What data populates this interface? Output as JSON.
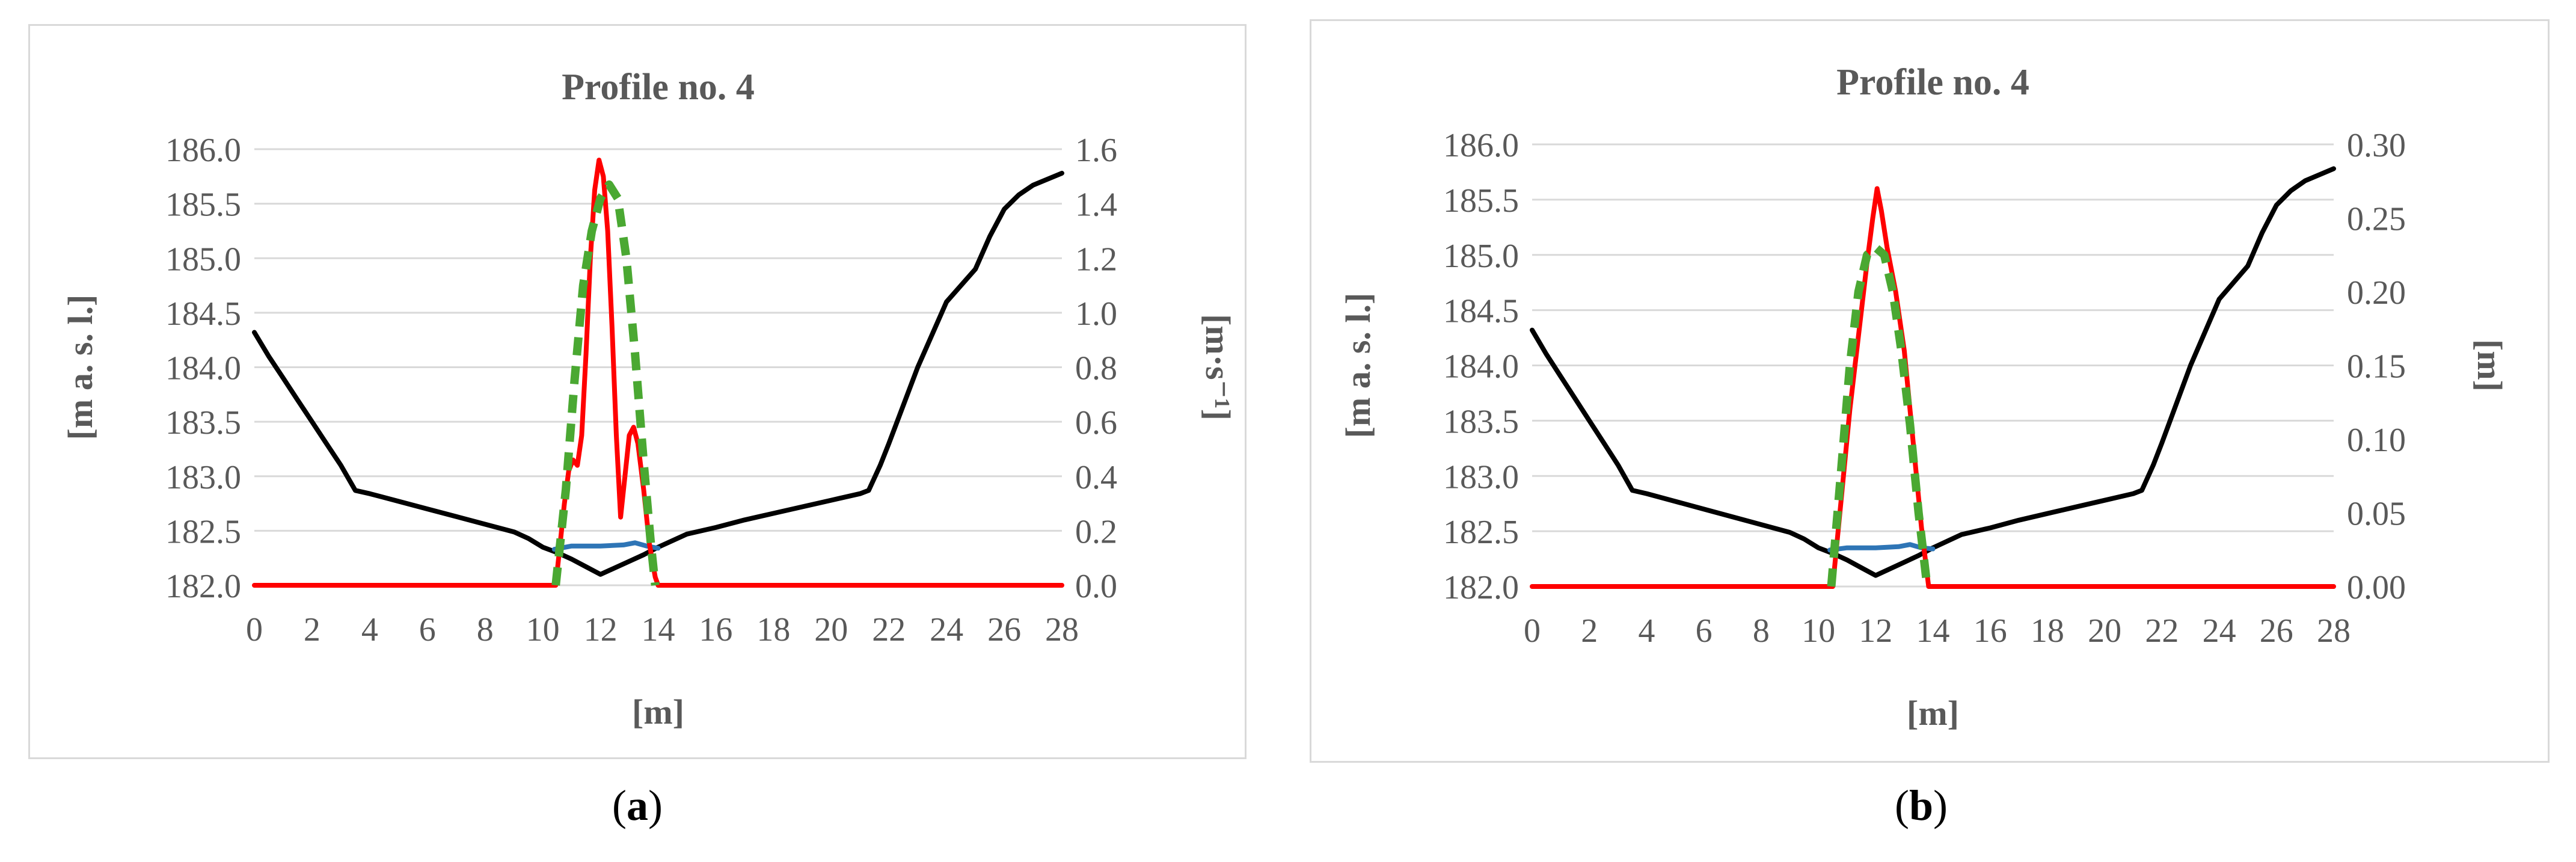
{
  "captions": [
    {
      "open": "(",
      "letter": "a",
      "close": ")"
    },
    {
      "open": "(",
      "letter": "b",
      "close": ")"
    }
  ],
  "colors": {
    "terrain": "#000000",
    "water_level": "#2e75b6",
    "computed": "#ff0000",
    "measured": "#4aa832",
    "grid": "#d9d9d9",
    "axis_text": "#595959"
  },
  "chart_data": [
    {
      "type": "line",
      "title": "Profile no. 4",
      "xlabel": "[m]",
      "ylabel": "[m a. s. l.]",
      "y2label": "[m·s⁻¹]",
      "xlim": [
        0,
        28
      ],
      "xticks": [
        "0",
        "2",
        "4",
        "6",
        "8",
        "10",
        "12",
        "14",
        "16",
        "18",
        "20",
        "22",
        "24",
        "26",
        "28"
      ],
      "ylim": [
        182.0,
        186.0
      ],
      "yticks": [
        "182.0",
        "182.5",
        "183.0",
        "183.5",
        "184.0",
        "184.5",
        "185.0",
        "185.5",
        "186.0"
      ],
      "y2lim": [
        0,
        1.6
      ],
      "y2ticks": [
        "0.0",
        "0.2",
        "0.4",
        "0.6",
        "0.8",
        "1.0",
        "1.2",
        "1.4",
        "1.6"
      ],
      "grid": "horizontal",
      "series": [
        {
          "key": "terrain",
          "axis": "left",
          "style": "solid",
          "points": [
            [
              0,
              184.32
            ],
            [
              0.5,
              184.1
            ],
            [
              1,
              183.9
            ],
            [
              1.5,
              183.7
            ],
            [
              2,
              183.5
            ],
            [
              2.5,
              183.3
            ],
            [
              3,
              183.1
            ],
            [
              3.5,
              182.87
            ],
            [
              4,
              182.84
            ],
            [
              5,
              182.77
            ],
            [
              6,
              182.7
            ],
            [
              7,
              182.63
            ],
            [
              8,
              182.56
            ],
            [
              9,
              182.49
            ],
            [
              9.5,
              182.43
            ],
            [
              10,
              182.35
            ],
            [
              10.5,
              182.3
            ],
            [
              11,
              182.24
            ],
            [
              11.5,
              182.17
            ],
            [
              12,
              182.1
            ],
            [
              12.5,
              182.16
            ],
            [
              13,
              182.22
            ],
            [
              13.5,
              182.28
            ],
            [
              14,
              182.35
            ],
            [
              15,
              182.47
            ],
            [
              16,
              182.53
            ],
            [
              17,
              182.6
            ],
            [
              18,
              182.66
            ],
            [
              19,
              182.72
            ],
            [
              20,
              182.78
            ],
            [
              21,
              182.84
            ],
            [
              21.3,
              182.87
            ],
            [
              21.7,
              183.1
            ],
            [
              22,
              183.3
            ],
            [
              23,
              184.0
            ],
            [
              24,
              184.6
            ],
            [
              25,
              184.9
            ],
            [
              25.5,
              185.2
            ],
            [
              26,
              185.45
            ],
            [
              26.5,
              185.58
            ],
            [
              27,
              185.67
            ],
            [
              28,
              185.78
            ]
          ]
        },
        {
          "key": "water_level",
          "axis": "left",
          "style": "solid",
          "points": [
            [
              10.4,
              182.33
            ],
            [
              11,
              182.36
            ],
            [
              12,
              182.36
            ],
            [
              12.8,
              182.37
            ],
            [
              13.2,
              182.39
            ],
            [
              13.6,
              182.36
            ],
            [
              14,
              182.34
            ]
          ]
        },
        {
          "key": "computed",
          "axis": "right",
          "style": "solid",
          "points": [
            [
              0,
              0
            ],
            [
              10.45,
              0
            ],
            [
              10.6,
              0.15
            ],
            [
              10.75,
              0.3
            ],
            [
              10.9,
              0.42
            ],
            [
              11.05,
              0.46
            ],
            [
              11.2,
              0.44
            ],
            [
              11.35,
              0.55
            ],
            [
              11.5,
              0.85
            ],
            [
              11.65,
              1.2
            ],
            [
              11.8,
              1.45
            ],
            [
              11.95,
              1.56
            ],
            [
              12.1,
              1.5
            ],
            [
              12.25,
              1.3
            ],
            [
              12.4,
              0.95
            ],
            [
              12.55,
              0.55
            ],
            [
              12.7,
              0.25
            ],
            [
              12.85,
              0.4
            ],
            [
              13.0,
              0.55
            ],
            [
              13.15,
              0.58
            ],
            [
              13.3,
              0.52
            ],
            [
              13.5,
              0.35
            ],
            [
              13.7,
              0.15
            ],
            [
              13.9,
              0.03
            ],
            [
              14,
              0
            ],
            [
              28,
              0
            ]
          ]
        },
        {
          "key": "measured",
          "axis": "right",
          "style": "dashed",
          "points": [
            [
              10.45,
              0
            ],
            [
              10.8,
              0.35
            ],
            [
              11.1,
              0.75
            ],
            [
              11.4,
              1.1
            ],
            [
              11.7,
              1.3
            ],
            [
              12.0,
              1.42
            ],
            [
              12.3,
              1.47
            ],
            [
              12.6,
              1.42
            ],
            [
              12.9,
              1.2
            ],
            [
              13.2,
              0.85
            ],
            [
              13.5,
              0.45
            ],
            [
              13.75,
              0.15
            ],
            [
              13.9,
              0
            ]
          ]
        }
      ]
    },
    {
      "type": "line",
      "title": "Profile no. 4",
      "xlabel": "[m]",
      "ylabel": "[m a. s. l.]",
      "y2label": "[m]",
      "xlim": [
        0,
        28
      ],
      "xticks": [
        "0",
        "2",
        "4",
        "6",
        "8",
        "10",
        "12",
        "14",
        "16",
        "18",
        "20",
        "22",
        "24",
        "26",
        "28"
      ],
      "ylim": [
        182.0,
        186.0
      ],
      "yticks": [
        "182.0",
        "182.5",
        "183.0",
        "183.5",
        "184.0",
        "184.5",
        "185.0",
        "185.5",
        "186.0"
      ],
      "y2lim": [
        0,
        0.3
      ],
      "y2ticks": [
        "0.00",
        "0.05",
        "0.10",
        "0.15",
        "0.20",
        "0.25",
        "0.30"
      ],
      "grid": "horizontal",
      "series": [
        {
          "key": "terrain",
          "axis": "left",
          "style": "solid",
          "points": [
            [
              0,
              184.32
            ],
            [
              0.5,
              184.1
            ],
            [
              1,
              183.9
            ],
            [
              1.5,
              183.7
            ],
            [
              2,
              183.5
            ],
            [
              2.5,
              183.3
            ],
            [
              3,
              183.1
            ],
            [
              3.5,
              182.87
            ],
            [
              4,
              182.84
            ],
            [
              5,
              182.77
            ],
            [
              6,
              182.7
            ],
            [
              7,
              182.63
            ],
            [
              8,
              182.56
            ],
            [
              9,
              182.49
            ],
            [
              9.5,
              182.43
            ],
            [
              10,
              182.35
            ],
            [
              10.5,
              182.3
            ],
            [
              11,
              182.24
            ],
            [
              11.5,
              182.17
            ],
            [
              12,
              182.1
            ],
            [
              12.5,
              182.16
            ],
            [
              13,
              182.22
            ],
            [
              13.5,
              182.28
            ],
            [
              14,
              182.35
            ],
            [
              15,
              182.47
            ],
            [
              16,
              182.53
            ],
            [
              17,
              182.6
            ],
            [
              18,
              182.66
            ],
            [
              19,
              182.72
            ],
            [
              20,
              182.78
            ],
            [
              21,
              182.84
            ],
            [
              21.3,
              182.87
            ],
            [
              21.7,
              183.1
            ],
            [
              22,
              183.3
            ],
            [
              23,
              184.0
            ],
            [
              24,
              184.6
            ],
            [
              25,
              184.9
            ],
            [
              25.5,
              185.2
            ],
            [
              26,
              185.45
            ],
            [
              26.5,
              185.58
            ],
            [
              27,
              185.67
            ],
            [
              28,
              185.78
            ]
          ]
        },
        {
          "key": "water_level",
          "axis": "left",
          "style": "solid",
          "points": [
            [
              10.4,
              182.33
            ],
            [
              11,
              182.35
            ],
            [
              12,
              182.35
            ],
            [
              12.8,
              182.36
            ],
            [
              13.2,
              182.38
            ],
            [
              13.6,
              182.35
            ],
            [
              14,
              182.34
            ]
          ]
        },
        {
          "key": "computed",
          "axis": "right",
          "style": "solid",
          "points": [
            [
              0,
              0
            ],
            [
              10.5,
              0
            ],
            [
              10.8,
              0.06
            ],
            [
              11.1,
              0.12
            ],
            [
              11.4,
              0.17
            ],
            [
              11.7,
              0.22
            ],
            [
              11.9,
              0.25
            ],
            [
              12.05,
              0.27
            ],
            [
              12.2,
              0.255
            ],
            [
              12.4,
              0.23
            ],
            [
              12.7,
              0.2
            ],
            [
              13.0,
              0.16
            ],
            [
              13.3,
              0.1
            ],
            [
              13.6,
              0.04
            ],
            [
              13.85,
              0
            ],
            [
              28,
              0
            ]
          ]
        },
        {
          "key": "measured",
          "axis": "right",
          "style": "dashed",
          "points": [
            [
              10.45,
              0
            ],
            [
              10.8,
              0.08
            ],
            [
              11.1,
              0.15
            ],
            [
              11.4,
              0.2
            ],
            [
              11.7,
              0.225
            ],
            [
              12.0,
              0.23
            ],
            [
              12.3,
              0.225
            ],
            [
              12.6,
              0.2
            ],
            [
              12.9,
              0.16
            ],
            [
              13.2,
              0.11
            ],
            [
              13.5,
              0.05
            ],
            [
              13.8,
              0
            ]
          ]
        }
      ]
    }
  ]
}
